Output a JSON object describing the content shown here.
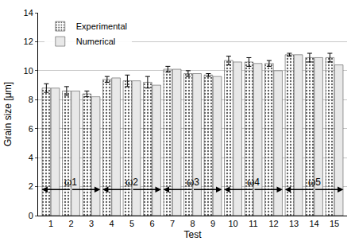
{
  "chart_data": {
    "type": "bar",
    "x_label": "Test",
    "y_label": "Grain size [μm]",
    "categories": [
      "1",
      "2",
      "3",
      "4",
      "5",
      "6",
      "7",
      "8",
      "9",
      "10",
      "11",
      "12",
      "13",
      "14",
      "15"
    ],
    "series": [
      {
        "name": "Experimental",
        "color": "#8c8c8c",
        "values": [
          8.8,
          8.6,
          8.4,
          9.4,
          9.3,
          9.2,
          10.1,
          9.8,
          9.7,
          10.7,
          10.6,
          10.5,
          11.1,
          10.9,
          10.9
        ],
        "errors": [
          0.3,
          0.3,
          0.2,
          0.2,
          0.4,
          0.4,
          0.2,
          0.2,
          0.1,
          0.3,
          0.3,
          0.2,
          0.1,
          0.3,
          0.3
        ]
      },
      {
        "name": "Numerical",
        "color": "#e8e8e8",
        "values": [
          8.8,
          8.6,
          8.2,
          9.5,
          9.3,
          9.0,
          10.1,
          9.8,
          9.6,
          10.6,
          10.5,
          10.0,
          11.1,
          10.9,
          10.4
        ]
      }
    ],
    "ylim": [
      0,
      14
    ],
    "yticks": [
      0,
      2,
      4,
      6,
      8,
      10,
      12,
      14
    ],
    "grid": true,
    "legend": "upper left",
    "annotations": [
      {
        "text": "ω1",
        "from": "1",
        "to": "3",
        "y": 1.8
      },
      {
        "text": "ω2",
        "from": "4",
        "to": "6",
        "y": 1.8
      },
      {
        "text": "ω3",
        "from": "7",
        "to": "9",
        "y": 1.8
      },
      {
        "text": "ω4",
        "from": "10",
        "to": "12",
        "y": 1.8
      },
      {
        "text": "ω5",
        "from": "13",
        "to": "15",
        "y": 1.8
      }
    ]
  }
}
